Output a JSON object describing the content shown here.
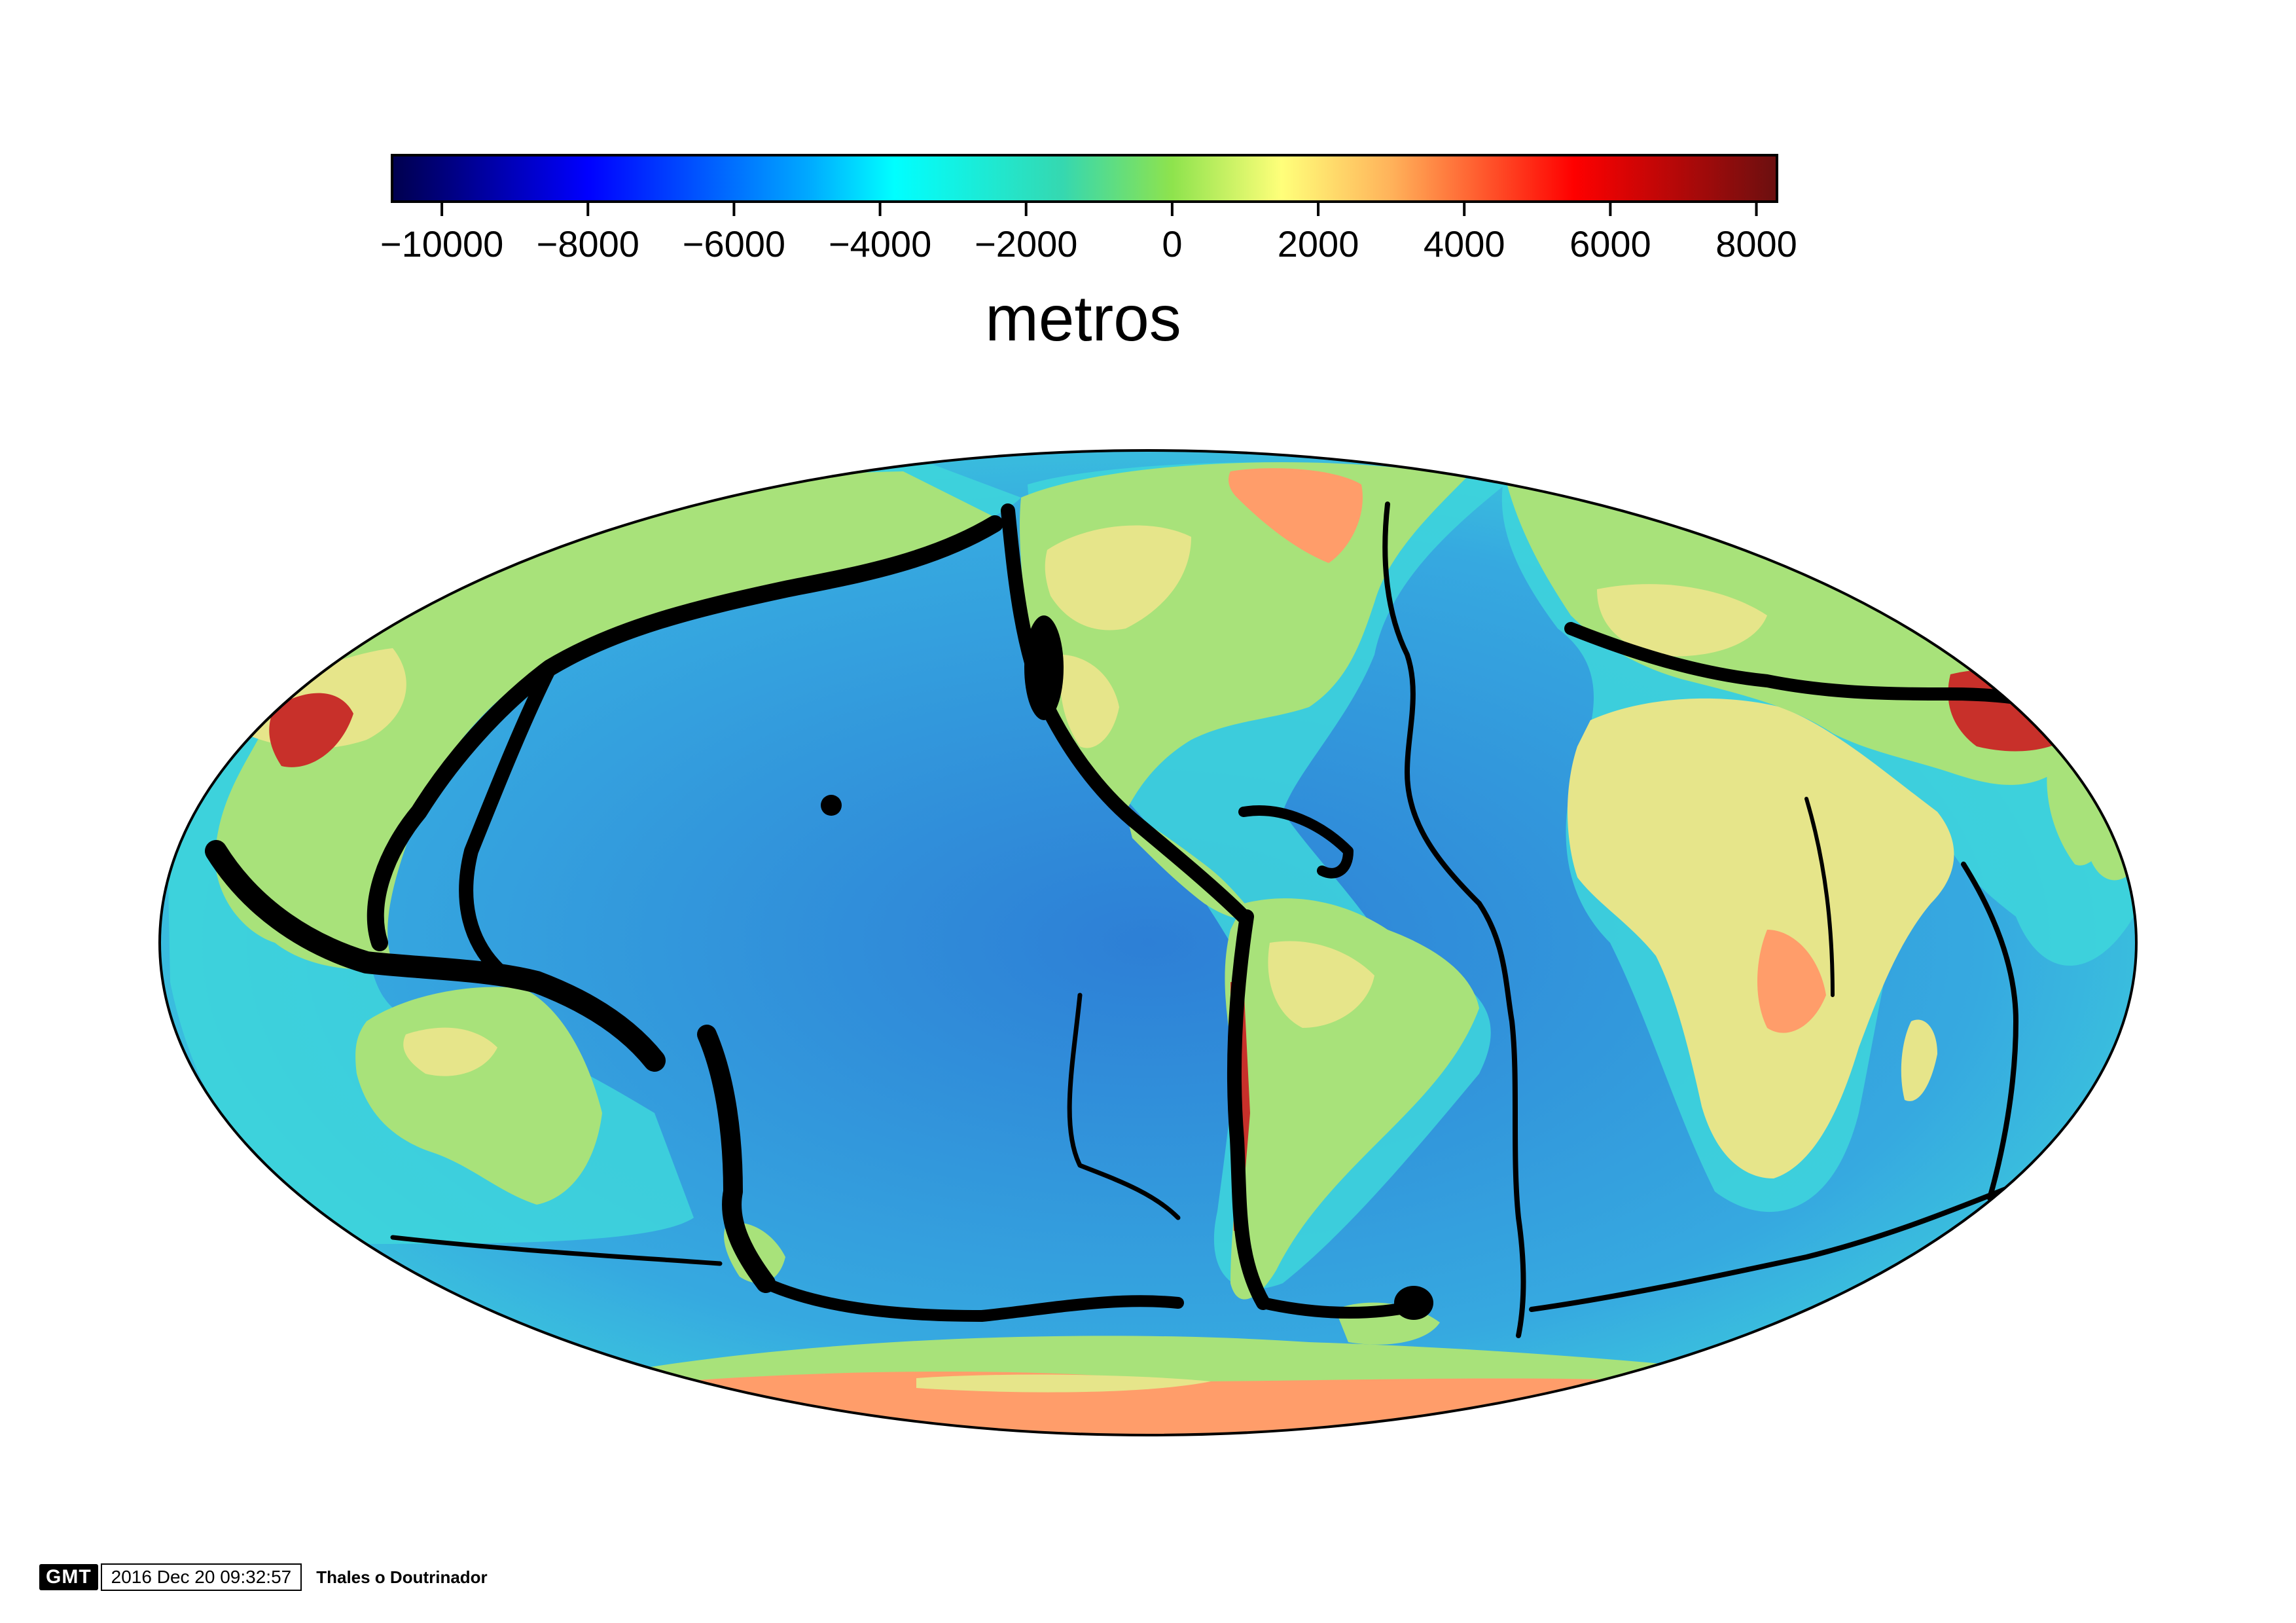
{
  "colorbar": {
    "ticks": [
      "−10000",
      "−8000",
      "−6000",
      "−4000",
      "−2000",
      "0",
      "2000",
      "4000",
      "6000",
      "8000"
    ],
    "tick_values": [
      -10000,
      -8000,
      -6000,
      -4000,
      -2000,
      0,
      2000,
      4000,
      6000,
      8000
    ],
    "range": [
      -10700,
      8300
    ],
    "unit_label": "metros",
    "colormap_stops": [
      {
        "value": -10700,
        "color": "#00004c"
      },
      {
        "value": -8000,
        "color": "#0000ff"
      },
      {
        "value": -5000,
        "color": "#00a8ff"
      },
      {
        "value": -3800,
        "color": "#00ffff"
      },
      {
        "value": -1500,
        "color": "#35d8b0"
      },
      {
        "value": 0,
        "color": "#8ee34d"
      },
      {
        "value": 1500,
        "color": "#ffff7a"
      },
      {
        "value": 3000,
        "color": "#ffb25a"
      },
      {
        "value": 5500,
        "color": "#ff0000"
      },
      {
        "value": 8300,
        "color": "#6a1010"
      }
    ]
  },
  "map": {
    "projection": "Mollweide",
    "colors": {
      "ocean_deep": "#2d7fd6",
      "ocean_mid": "#36a9e0",
      "ocean_shelf": "#3ed6dc",
      "land_low": "#a8e27a",
      "land_mid": "#e6e58a",
      "land_high": "#ff9d6a",
      "mountain": "#c8302a",
      "seismicity": "#000000"
    }
  },
  "timestamp": {
    "logo": "GMT",
    "date": "2016 Dec 20 09:32:57",
    "author": "Thales o Doutrinador"
  }
}
